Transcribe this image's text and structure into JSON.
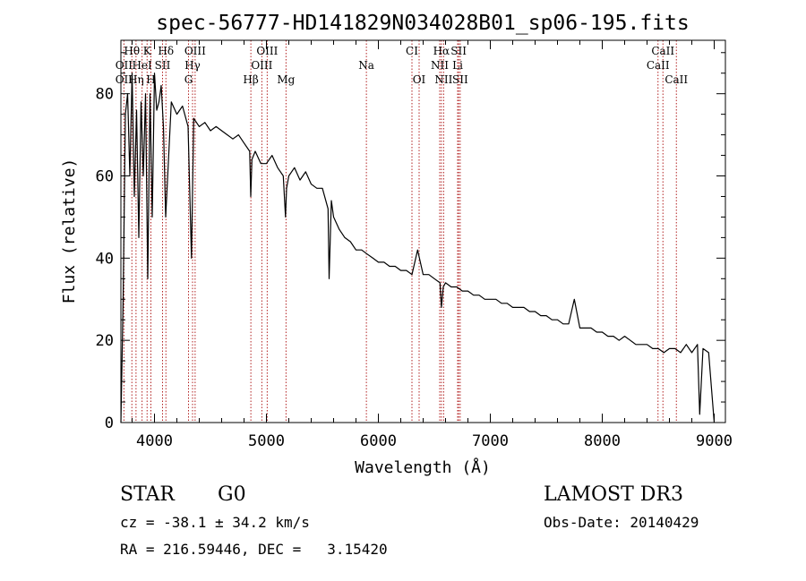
{
  "chart_data": {
    "type": "line",
    "title": "spec-56777-HD141829N034028B01_sp06-195.fits",
    "xlabel": "Wavelength (Å)",
    "ylabel": "Flux (relative)",
    "xlim": [
      3700,
      9100
    ],
    "ylim": [
      0,
      93
    ],
    "xticks": [
      4000,
      5000,
      6000,
      7000,
      8000,
      9000
    ],
    "xtick_labels": [
      "4000",
      "5000",
      "6000",
      "7000",
      "8000",
      "9000"
    ],
    "yticks": [
      0,
      20,
      40,
      60,
      80
    ],
    "ytick_labels": [
      "0",
      "20",
      "40",
      "60",
      "80"
    ],
    "x_minor_step": 200,
    "y_minor_step": 5,
    "lines": [
      {
        "label": "Hθ",
        "wavelength": 3798,
        "row": 0
      },
      {
        "label": "K",
        "wavelength": 3934,
        "row": 0
      },
      {
        "label": "Hδ",
        "wavelength": 4102,
        "row": 0
      },
      {
        "label": "OIII",
        "wavelength": 4363,
        "row": 0
      },
      {
        "label": "OIII",
        "wavelength": 5007,
        "row": 0
      },
      {
        "label": "CI",
        "wavelength": 6300,
        "row": 0
      },
      {
        "label": "Hα",
        "wavelength": 6563,
        "row": 0
      },
      {
        "label": "SII",
        "wavelength": 6717,
        "row": 0
      },
      {
        "label": "CaII",
        "wavelength": 8542,
        "row": 0
      },
      {
        "label": "OII",
        "wavelength": 3727,
        "row": 1
      },
      {
        "label": "HeI",
        "wavelength": 3889,
        "row": 1
      },
      {
        "label": "SII",
        "wavelength": 4072,
        "row": 1
      },
      {
        "label": "Hγ",
        "wavelength": 4340,
        "row": 1
      },
      {
        "label": "OIII",
        "wavelength": 4959,
        "row": 1
      },
      {
        "label": "Na",
        "wavelength": 5893,
        "row": 1
      },
      {
        "label": "NII",
        "wavelength": 6548,
        "row": 1
      },
      {
        "label": "Li",
        "wavelength": 6708,
        "row": 1
      },
      {
        "label": "CaII",
        "wavelength": 8498,
        "row": 1
      },
      {
        "label": "OII",
        "wavelength": 3727,
        "row": 2
      },
      {
        "label": "Hη",
        "wavelength": 3835,
        "row": 2
      },
      {
        "label": "H",
        "wavelength": 3968,
        "row": 2
      },
      {
        "label": "G",
        "wavelength": 4304,
        "row": 2
      },
      {
        "label": "Hβ",
        "wavelength": 4861,
        "row": 2
      },
      {
        "label": "Mg",
        "wavelength": 5175,
        "row": 2
      },
      {
        "label": "OI",
        "wavelength": 6364,
        "row": 2
      },
      {
        "label": "NII",
        "wavelength": 6583,
        "row": 2
      },
      {
        "label": "SII",
        "wavelength": 6731,
        "row": 2
      },
      {
        "label": "CaII",
        "wavelength": 8662,
        "row": 2
      }
    ],
    "series": [
      {
        "name": "flux",
        "x": [
          3700,
          3720,
          3740,
          3760,
          3780,
          3800,
          3820,
          3840,
          3860,
          3880,
          3900,
          3920,
          3940,
          3960,
          3980,
          4000,
          4020,
          4040,
          4060,
          4080,
          4100,
          4150,
          4200,
          4250,
          4300,
          4330,
          4350,
          4400,
          4450,
          4500,
          4550,
          4600,
          4650,
          4700,
          4750,
          4800,
          4850,
          4860,
          4870,
          4900,
          4950,
          5000,
          5050,
          5100,
          5150,
          5170,
          5180,
          5200,
          5250,
          5300,
          5350,
          5400,
          5450,
          5500,
          5550,
          5560,
          5580,
          5600,
          5650,
          5700,
          5750,
          5800,
          5850,
          5900,
          5950,
          6000,
          6050,
          6100,
          6150,
          6200,
          6250,
          6300,
          6350,
          6400,
          6450,
          6500,
          6550,
          6563,
          6580,
          6600,
          6650,
          6700,
          6750,
          6800,
          6850,
          6900,
          6950,
          7000,
          7050,
          7100,
          7150,
          7200,
          7250,
          7300,
          7350,
          7400,
          7450,
          7500,
          7550,
          7600,
          7650,
          7700,
          7750,
          7800,
          7850,
          7900,
          7950,
          8000,
          8050,
          8100,
          8150,
          8200,
          8250,
          8300,
          8350,
          8400,
          8450,
          8500,
          8550,
          8600,
          8650,
          8700,
          8750,
          8800,
          8850,
          8870,
          8900,
          8950,
          9000
        ],
        "y": [
          0,
          30,
          75,
          80,
          60,
          85,
          55,
          76,
          45,
          78,
          60,
          80,
          35,
          80,
          50,
          85,
          76,
          78,
          82,
          72,
          50,
          78,
          75,
          77,
          72,
          40,
          74,
          72,
          73,
          71,
          72,
          71,
          70,
          69,
          70,
          68,
          66,
          55,
          64,
          66,
          63,
          63,
          65,
          62,
          60,
          50,
          57,
          60,
          62,
          59,
          61,
          58,
          57,
          57,
          52,
          35,
          54,
          50,
          47,
          45,
          44,
          42,
          42,
          41,
          40,
          39,
          39,
          38,
          38,
          37,
          37,
          36,
          42,
          36,
          36,
          35,
          34,
          28,
          33,
          34,
          33,
          33,
          32,
          32,
          31,
          31,
          30,
          30,
          30,
          29,
          29,
          28,
          28,
          28,
          27,
          27,
          26,
          26,
          25,
          25,
          24,
          24,
          30,
          23,
          23,
          23,
          22,
          22,
          21,
          21,
          20,
          21,
          20,
          19,
          19,
          19,
          18,
          18,
          17,
          18,
          18,
          17,
          19,
          17,
          19,
          2,
          18,
          17,
          0
        ]
      }
    ]
  },
  "footer": {
    "object_class": "STAR",
    "subclass": "G0",
    "survey": "LAMOST DR3",
    "cz": "cz = -38.1 ± 34.2 km/s",
    "obs_date": "Obs-Date: 20140429",
    "coords": "RA = 216.59446, DEC =   3.15420"
  },
  "colors": {
    "line_marker": "#b22222",
    "spectrum": "#000000",
    "axis": "#000000"
  }
}
